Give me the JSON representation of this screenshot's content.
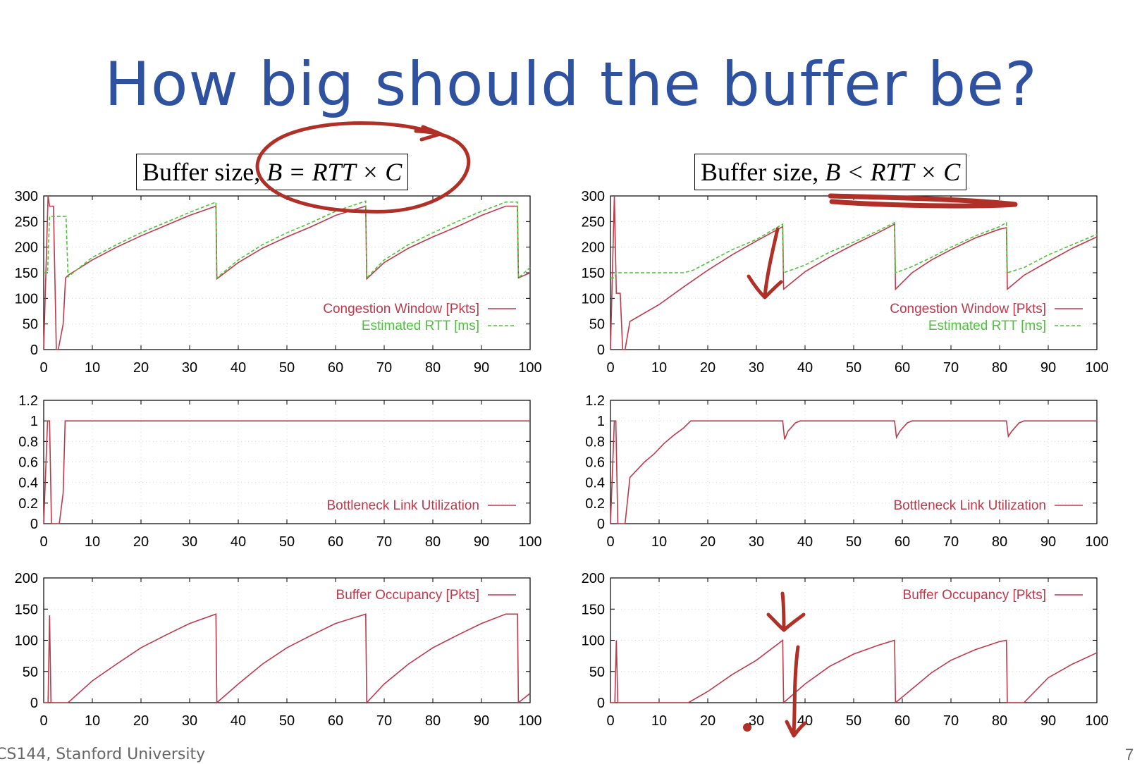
{
  "slide": {
    "title": "How big should the buffer be?",
    "footer": "CS144, Stanford University",
    "page_number": "7"
  },
  "captions": {
    "left": {
      "prefix": "Buffer size, ",
      "formula": "B = RTT × C"
    },
    "right": {
      "prefix": "Buffer size, ",
      "formula": "B < RTT × C"
    }
  },
  "colors": {
    "title": "#2f52a0",
    "cwnd": "#c0394b",
    "rtt": "#4cc43a",
    "ink": "#b03028"
  },
  "chart_data": [
    {
      "id": "left-cwnd",
      "type": "line",
      "x_range": [
        0,
        100
      ],
      "ylim": [
        0,
        300
      ],
      "xticks": [
        0,
        10,
        20,
        30,
        40,
        50,
        60,
        70,
        80,
        90,
        100
      ],
      "yticks": [
        0,
        50,
        100,
        150,
        200,
        250,
        300
      ],
      "grid": true,
      "legend_position": "bottom-right",
      "series": [
        {
          "name": "Congestion Window [Pkts]",
          "style": "solid",
          "x": [
            0,
            0.9,
            1.2,
            2,
            2.6,
            3,
            4,
            4.5,
            5,
            10,
            15,
            20,
            25,
            30,
            35.4,
            35.6,
            40,
            45,
            50,
            55,
            60,
            66.2,
            66.4,
            70,
            75,
            80,
            85,
            90,
            95,
            97.4,
            97.6,
            100
          ],
          "y": [
            0,
            300,
            280,
            280,
            0,
            0,
            50,
            140,
            145,
            175,
            200,
            222,
            242,
            262,
            280,
            138,
            170,
            198,
            220,
            240,
            262,
            280,
            138,
            170,
            198,
            220,
            240,
            262,
            280,
            280,
            140,
            150
          ]
        },
        {
          "name": "Estimated RTT",
          "unit": "[ms]",
          "style": "dashed",
          "x": [
            0,
            0.8,
            1.2,
            1.6,
            4.6,
            5,
            10,
            15,
            20,
            25,
            30,
            35.4,
            35.6,
            40,
            45,
            50,
            55,
            60,
            66.2,
            66.4,
            70,
            75,
            80,
            85,
            90,
            95,
            97.4,
            97.6,
            100
          ],
          "y": [
            150,
            150,
            260,
            260,
            260,
            142,
            180,
            205,
            228,
            248,
            268,
            288,
            140,
            175,
            205,
            228,
            248,
            270,
            290,
            140,
            175,
            205,
            228,
            250,
            270,
            288,
            288,
            140,
            160
          ]
        }
      ]
    },
    {
      "id": "left-util",
      "type": "line",
      "x_range": [
        0,
        100
      ],
      "ylim": [
        0,
        1.2
      ],
      "xticks": [
        0,
        10,
        20,
        30,
        40,
        50,
        60,
        70,
        80,
        90,
        100
      ],
      "yticks": [
        "0",
        "0.2",
        "0.4",
        "0.6",
        "0.8",
        "1",
        "1.2"
      ],
      "grid": true,
      "legend_position": "bottom-right",
      "series": [
        {
          "name": "Bottleneck Link Utilization",
          "style": "solid",
          "x": [
            0,
            0.8,
            1.2,
            1.6,
            2.6,
            3.2,
            4,
            4.4,
            5,
            100
          ],
          "y": [
            0,
            1,
            1,
            0,
            0,
            0,
            0.3,
            1,
            1,
            1
          ]
        }
      ]
    },
    {
      "id": "left-buffer",
      "type": "line",
      "x_range": [
        0,
        100
      ],
      "ylim": [
        0,
        200
      ],
      "xticks": [
        0,
        10,
        20,
        30,
        40,
        50,
        60,
        70,
        80,
        90,
        100
      ],
      "yticks": [
        0,
        50,
        100,
        150,
        200
      ],
      "grid": true,
      "legend_position": "top-right",
      "series": [
        {
          "name": "Buffer Occupancy [Pkts]",
          "style": "solid",
          "x": [
            0,
            0.9,
            1.2,
            1.5,
            4.5,
            5,
            10,
            15,
            20,
            25,
            30,
            35.4,
            35.6,
            40,
            45,
            50,
            55,
            60,
            66.2,
            66.4,
            70,
            75,
            80,
            85,
            90,
            95,
            97.4,
            97.6,
            100
          ],
          "y": [
            0,
            0,
            140,
            0,
            0,
            0,
            35,
            62,
            88,
            108,
            127,
            142,
            0,
            30,
            62,
            88,
            108,
            127,
            142,
            0,
            30,
            62,
            88,
            108,
            127,
            142,
            142,
            0,
            15
          ]
        }
      ]
    },
    {
      "id": "right-cwnd",
      "type": "line",
      "x_range": [
        0,
        100
      ],
      "ylim": [
        0,
        300
      ],
      "xticks": [
        0,
        10,
        20,
        30,
        40,
        50,
        60,
        70,
        80,
        90,
        100
      ],
      "yticks": [
        0,
        50,
        100,
        150,
        200,
        250,
        300
      ],
      "grid": true,
      "legend_position": "bottom-right",
      "series": [
        {
          "name": "Congestion Window [Pkts]",
          "style": "solid",
          "x": [
            0,
            0.8,
            1.2,
            2,
            2.5,
            3,
            4,
            10,
            15,
            20,
            25,
            30,
            35.4,
            35.6,
            40,
            45,
            50,
            55,
            58.4,
            58.6,
            62,
            66,
            70,
            75,
            80,
            81.4,
            81.6,
            85,
            90,
            95,
            100
          ],
          "y": [
            0,
            300,
            110,
            110,
            0,
            0,
            55,
            88,
            122,
            155,
            185,
            212,
            240,
            118,
            152,
            180,
            205,
            228,
            245,
            118,
            150,
            175,
            195,
            218,
            235,
            238,
            118,
            145,
            172,
            198,
            220
          ]
        },
        {
          "name": "Estimated RTT",
          "unit": "[ms]",
          "style": "dashed",
          "x": [
            0,
            0.8,
            1.2,
            3,
            10,
            15,
            17,
            20,
            25,
            30,
            35.4,
            35.6,
            40,
            45,
            50,
            55,
            58.4,
            58.6,
            62,
            66,
            70,
            75,
            80,
            81.4,
            81.6,
            85,
            90,
            95,
            100
          ],
          "y": [
            140,
            140,
            150,
            150,
            150,
            150,
            155,
            170,
            195,
            215,
            245,
            150,
            165,
            190,
            210,
            232,
            248,
            150,
            162,
            180,
            200,
            222,
            240,
            248,
            150,
            160,
            185,
            205,
            225
          ]
        }
      ]
    },
    {
      "id": "right-util",
      "type": "line",
      "x_range": [
        0,
        100
      ],
      "ylim": [
        0,
        1.2
      ],
      "xticks": [
        0,
        10,
        20,
        30,
        40,
        50,
        60,
        70,
        80,
        90,
        100
      ],
      "yticks": [
        "0",
        "0.2",
        "0.4",
        "0.6",
        "0.8",
        "1",
        "1.2"
      ],
      "grid": true,
      "legend_position": "bottom-right",
      "series": [
        {
          "name": "Bottleneck Link Utilization",
          "style": "solid",
          "x": [
            0,
            0.8,
            1.1,
            1.5,
            2.5,
            3,
            4,
            5,
            7,
            9,
            11,
            13,
            15,
            16.5,
            17,
            35.4,
            35.8,
            36.5,
            38,
            39,
            58.4,
            58.8,
            59.5,
            61,
            62,
            81.4,
            81.8,
            82.5,
            84,
            85,
            100
          ],
          "y": [
            0,
            1,
            1,
            0,
            0,
            0,
            0.45,
            0.5,
            0.6,
            0.68,
            0.78,
            0.86,
            0.93,
            1,
            1,
            1,
            0.82,
            0.9,
            0.98,
            1,
            1,
            0.84,
            0.9,
            0.98,
            1,
            1,
            0.85,
            0.9,
            0.98,
            1,
            1
          ]
        }
      ]
    },
    {
      "id": "right-buffer",
      "type": "line",
      "x_range": [
        0,
        100
      ],
      "ylim": [
        0,
        200
      ],
      "xticks": [
        0,
        10,
        20,
        30,
        40,
        50,
        60,
        70,
        80,
        90,
        100
      ],
      "yticks": [
        0,
        50,
        100,
        150,
        200
      ],
      "grid": true,
      "legend_position": "top-right",
      "series": [
        {
          "name": "Buffer Occupancy [Pkts]",
          "style": "solid",
          "x": [
            0,
            0.9,
            1.2,
            1.5,
            16,
            20,
            25,
            30,
            35.4,
            35.6,
            40,
            45,
            50,
            55,
            58.4,
            58.6,
            62,
            66,
            70,
            75,
            80,
            81.4,
            81.6,
            85,
            90,
            95,
            100
          ],
          "y": [
            0,
            0,
            100,
            0,
            0,
            18,
            45,
            68,
            100,
            0,
            30,
            58,
            78,
            92,
            100,
            0,
            22,
            48,
            68,
            85,
            98,
            100,
            0,
            0,
            40,
            62,
            80
          ]
        }
      ]
    }
  ]
}
